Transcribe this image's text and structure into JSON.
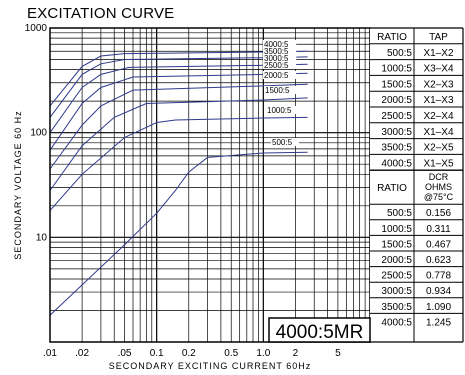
{
  "title": "EXCITATION CURVE",
  "model": "4000:5MR",
  "colors": {
    "curve": "#2e3a8c",
    "grid": "#000000",
    "background": "#ffffff"
  },
  "chart_data": {
    "type": "line",
    "title": "EXCITATION CURVE",
    "xlabel": "SECONDARY EXCITING CURRENT 60Hz",
    "ylabel": "SECONDARY VOLTAGE 60 Hz",
    "x_scale": "log",
    "y_scale": "log",
    "xlim": [
      0.01,
      10
    ],
    "ylim": [
      1,
      1000
    ],
    "x_ticks": [
      {
        "v": 0.01,
        "label": ".01"
      },
      {
        "v": 0.02,
        "label": ".02"
      },
      {
        "v": 0.05,
        "label": ".05"
      },
      {
        "v": 0.1,
        "label": "0.1"
      },
      {
        "v": 0.2,
        "label": "0.2"
      },
      {
        "v": 0.5,
        "label": "0.5"
      },
      {
        "v": 1,
        "label": "1.0"
      },
      {
        "v": 2,
        "label": "2"
      },
      {
        "v": 5,
        "label": "5"
      }
    ],
    "y_ticks": [
      {
        "v": 10,
        "label": "10"
      },
      {
        "v": 100,
        "label": "100"
      },
      {
        "v": 1000,
        "label": "1000"
      }
    ],
    "grid": true,
    "series": [
      {
        "name": "4000:5",
        "x": [
          0.01,
          0.02,
          0.03,
          0.05,
          1,
          2.6
        ],
        "y": [
          180,
          430,
          540,
          570,
          590,
          600
        ]
      },
      {
        "name": "3500:5",
        "x": [
          0.01,
          0.02,
          0.03,
          0.05,
          1,
          2.6
        ],
        "y": [
          140,
          360,
          455,
          500,
          520,
          530
        ]
      },
      {
        "name": "3000:5",
        "x": [
          0.01,
          0.02,
          0.03,
          0.055,
          1,
          2.6
        ],
        "y": [
          100,
          270,
          360,
          420,
          440,
          450
        ]
      },
      {
        "name": "2500:5",
        "x": [
          0.01,
          0.02,
          0.03,
          0.06,
          1,
          2.6
        ],
        "y": [
          68,
          190,
          270,
          340,
          360,
          370
        ]
      },
      {
        "name": "2000:5",
        "x": [
          0.01,
          0.02,
          0.03,
          0.06,
          1,
          2.6
        ],
        "y": [
          45,
          118,
          180,
          255,
          280,
          290
        ]
      },
      {
        "name": "1500:5",
        "x": [
          0.01,
          0.02,
          0.04,
          0.08,
          1,
          2.6
        ],
        "y": [
          28,
          75,
          140,
          190,
          205,
          215
        ]
      },
      {
        "name": "1000:5",
        "x": [
          0.01,
          0.02,
          0.05,
          0.1,
          0.15,
          1,
          2.6
        ],
        "y": [
          18,
          40,
          90,
          125,
          132,
          138,
          140
        ]
      },
      {
        "name": "500:5",
        "x": [
          0.01,
          0.05,
          0.1,
          0.15,
          0.2,
          0.3,
          1,
          2.6
        ],
        "y": [
          1.8,
          8.5,
          17,
          28,
          42,
          58,
          64,
          65
        ]
      }
    ]
  },
  "tap_table": {
    "headers": [
      "RATIO",
      "TAP"
    ],
    "rows": [
      [
        "500:5",
        "X1–X2"
      ],
      [
        "1000:5",
        "X3–X4"
      ],
      [
        "1500:5",
        "X2–X3"
      ],
      [
        "2000:5",
        "X1–X3"
      ],
      [
        "2500:5",
        "X2–X4"
      ],
      [
        "3000:5",
        "X1–X4"
      ],
      [
        "3500:5",
        "X2–X5"
      ],
      [
        "4000:5",
        "X1–X5"
      ]
    ]
  },
  "dcr_table": {
    "headers": [
      "RATIO",
      "DCR",
      "OHMS",
      "@75°C"
    ],
    "rows": [
      [
        "500:5",
        "0.156"
      ],
      [
        "1000:5",
        "0.311"
      ],
      [
        "1500:5",
        "0.467"
      ],
      [
        "2000:5",
        "0.623"
      ],
      [
        "2500:5",
        "0.778"
      ],
      [
        "3000:5",
        "0.934"
      ],
      [
        "3500:5",
        "1.090"
      ],
      [
        "4000:5",
        "1.245"
      ]
    ]
  }
}
